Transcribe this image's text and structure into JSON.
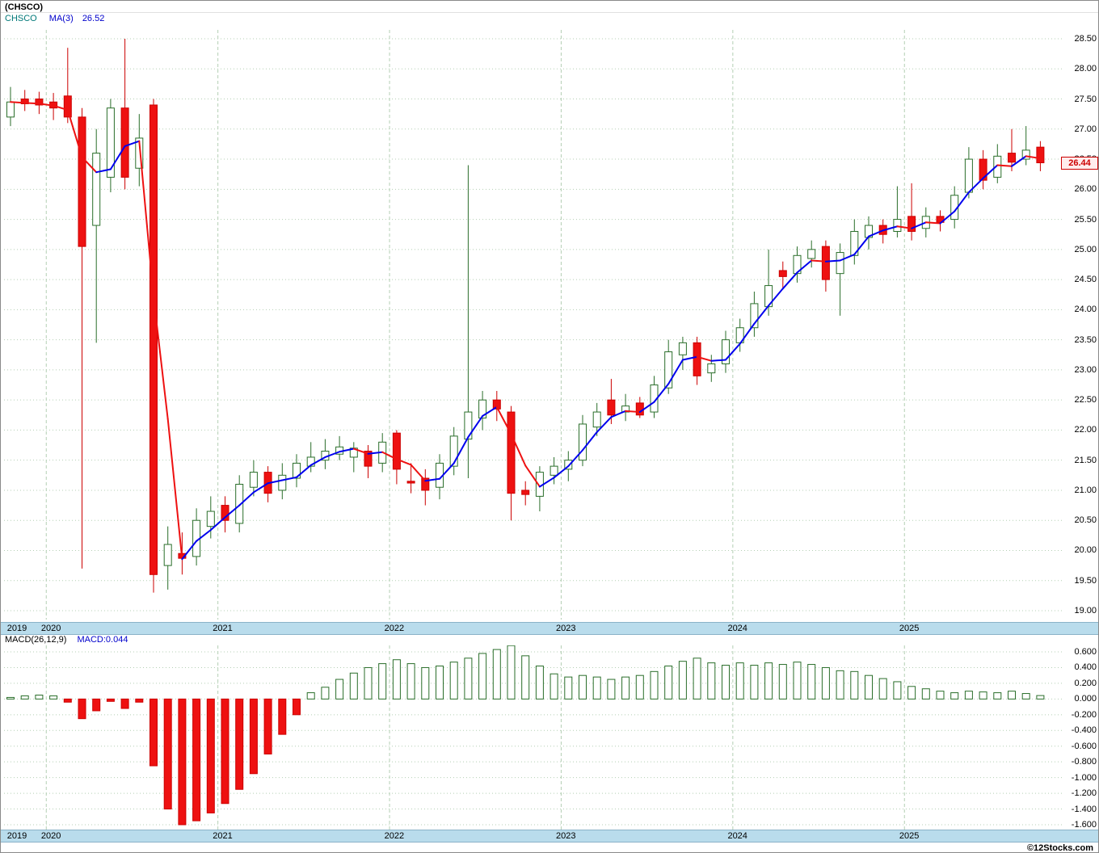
{
  "header": {
    "title": "(CHSCO)"
  },
  "main_chart": {
    "legend": {
      "symbol": "CHSCO",
      "ma_label": "MA(3)",
      "ma_value": "26.52"
    },
    "last_price_label": "26.44"
  },
  "macd": {
    "legend": {
      "name": "MACD(26,12,9)",
      "value": "MACD:0.044"
    }
  },
  "footer": {
    "copyright": "©12Stocks.com"
  },
  "colors": {
    "up_border": "#2a6e2a",
    "up_fill": "#ffffff",
    "down_fill": "#ee1111",
    "down_border": "#cc0000",
    "ma_up": "#0000ee",
    "ma_down": "#ee1111",
    "grid": "#b4cfb4",
    "band_bg": "#b9dcec",
    "band_border": "#8ab2c8",
    "symbol_color": "#007878",
    "legend_blue": "#0000cc",
    "tag_color": "#cc0000",
    "tag_bg": "#ffecec"
  },
  "chart_data": [
    {
      "type": "candlestick",
      "title": "(CHSCO)",
      "symbol": "CHSCO",
      "interval": "monthly",
      "x_start": "2019-10",
      "overlay": {
        "name": "MA(3)",
        "period": 3,
        "last_value": 26.52
      },
      "last_close": 26.44,
      "ylim": [
        18.85,
        28.75
      ],
      "y_ticks": [
        28.5,
        28.0,
        27.5,
        27.0,
        26.5,
        26.0,
        25.5,
        25.0,
        24.5,
        24.0,
        23.5,
        23.0,
        22.5,
        22.0,
        21.5,
        21.0,
        20.5,
        20.0,
        19.5,
        19.0
      ],
      "x_year_marks": [
        {
          "label": "2019",
          "index": 0,
          "gridline": false
        },
        {
          "label": "2020",
          "index": 3,
          "gridline": true
        },
        {
          "label": "2021",
          "index": 15,
          "gridline": true
        },
        {
          "label": "2022",
          "index": 27,
          "gridline": true
        },
        {
          "label": "2023",
          "index": 39,
          "gridline": true
        },
        {
          "label": "2024",
          "index": 51,
          "gridline": true
        },
        {
          "label": "2025",
          "index": 63,
          "gridline": true
        }
      ],
      "candles": [
        [
          27.2,
          27.7,
          27.05,
          27.45
        ],
        [
          27.5,
          27.65,
          27.3,
          27.42
        ],
        [
          27.5,
          27.62,
          27.25,
          27.4
        ],
        [
          27.45,
          27.6,
          27.15,
          27.35
        ],
        [
          27.55,
          28.35,
          27.1,
          27.2
        ],
        [
          27.2,
          27.35,
          19.7,
          25.05
        ],
        [
          25.4,
          27.0,
          23.45,
          26.6
        ],
        [
          26.2,
          27.5,
          25.95,
          27.35
        ],
        [
          27.35,
          28.5,
          26.0,
          26.2
        ],
        [
          26.35,
          27.25,
          26.05,
          26.85
        ],
        [
          27.4,
          27.5,
          19.3,
          19.6
        ],
        [
          19.75,
          20.4,
          19.35,
          20.1
        ],
        [
          19.95,
          20.3,
          19.6,
          19.87
        ],
        [
          19.9,
          20.7,
          19.75,
          20.5
        ],
        [
          20.4,
          20.9,
          20.2,
          20.65
        ],
        [
          20.75,
          20.9,
          20.3,
          20.5
        ],
        [
          20.45,
          21.25,
          20.3,
          21.1
        ],
        [
          21.05,
          21.5,
          20.9,
          21.3
        ],
        [
          21.3,
          21.4,
          20.8,
          20.95
        ],
        [
          21.0,
          21.45,
          20.85,
          21.25
        ],
        [
          21.2,
          21.6,
          21.05,
          21.45
        ],
        [
          21.4,
          21.8,
          21.3,
          21.55
        ],
        [
          21.5,
          21.85,
          21.35,
          21.65
        ],
        [
          21.6,
          21.9,
          21.5,
          21.72
        ],
        [
          21.55,
          21.8,
          21.3,
          21.7
        ],
        [
          21.65,
          21.75,
          21.2,
          21.4
        ],
        [
          21.45,
          21.95,
          21.3,
          21.8
        ],
        [
          21.95,
          22.0,
          21.1,
          21.35
        ],
        [
          21.15,
          21.45,
          20.95,
          21.12
        ],
        [
          21.2,
          21.35,
          20.75,
          21.0
        ],
        [
          21.05,
          21.6,
          20.85,
          21.45
        ],
        [
          21.4,
          22.05,
          21.25,
          21.9
        ],
        [
          21.85,
          26.4,
          21.2,
          22.3
        ],
        [
          22.2,
          22.65,
          22.0,
          22.5
        ],
        [
          22.5,
          22.65,
          22.15,
          22.35
        ],
        [
          22.3,
          22.4,
          20.5,
          20.95
        ],
        [
          21.0,
          21.15,
          20.75,
          20.93
        ],
        [
          20.9,
          21.4,
          20.65,
          21.3
        ],
        [
          21.25,
          21.55,
          21.1,
          21.4
        ],
        [
          21.35,
          21.65,
          21.15,
          21.5
        ],
        [
          21.5,
          22.25,
          21.4,
          22.1
        ],
        [
          22.05,
          22.45,
          21.9,
          22.3
        ],
        [
          22.5,
          22.85,
          22.1,
          22.25
        ],
        [
          22.3,
          22.6,
          22.15,
          22.4
        ],
        [
          22.45,
          22.55,
          22.2,
          22.25
        ],
        [
          22.3,
          22.9,
          22.2,
          22.75
        ],
        [
          22.7,
          23.5,
          22.6,
          23.3
        ],
        [
          23.25,
          23.55,
          23.0,
          23.45
        ],
        [
          23.45,
          23.55,
          22.75,
          22.9
        ],
        [
          22.95,
          23.25,
          22.8,
          23.1
        ],
        [
          23.1,
          23.65,
          22.95,
          23.5
        ],
        [
          23.45,
          23.85,
          23.3,
          23.7
        ],
        [
          23.7,
          24.3,
          23.55,
          24.1
        ],
        [
          24.05,
          25.0,
          23.9,
          24.4
        ],
        [
          24.65,
          24.8,
          24.35,
          24.55
        ],
        [
          24.6,
          25.05,
          24.45,
          24.9
        ],
        [
          24.85,
          25.15,
          24.7,
          25.0
        ],
        [
          25.05,
          25.15,
          24.3,
          24.5
        ],
        [
          24.6,
          25.1,
          23.9,
          24.95
        ],
        [
          24.9,
          25.5,
          24.75,
          25.3
        ],
        [
          25.2,
          25.55,
          25.0,
          25.4
        ],
        [
          25.4,
          25.5,
          25.1,
          25.25
        ],
        [
          25.3,
          26.05,
          25.2,
          25.5
        ],
        [
          25.55,
          26.1,
          25.15,
          25.3
        ],
        [
          25.35,
          25.7,
          25.2,
          25.55
        ],
        [
          25.55,
          25.65,
          25.3,
          25.45
        ],
        [
          25.5,
          26.05,
          25.35,
          25.9
        ],
        [
          25.95,
          26.7,
          25.85,
          26.5
        ],
        [
          26.5,
          26.65,
          26.0,
          26.15
        ],
        [
          26.2,
          26.75,
          26.1,
          26.55
        ],
        [
          26.6,
          27.0,
          26.3,
          26.45
        ],
        [
          26.5,
          27.05,
          26.4,
          26.65
        ],
        [
          26.7,
          26.8,
          26.3,
          26.44
        ]
      ]
    },
    {
      "type": "bar",
      "title": "MACD(26,12,9)",
      "name": "MACD histogram",
      "last_value": 0.044,
      "ylim": [
        -1.7,
        0.7
      ],
      "y_ticks": [
        0.6,
        0.4,
        0.2,
        0.0,
        -0.2,
        -0.4,
        -0.6,
        -0.8,
        -1.0,
        -1.2,
        -1.4,
        -1.6
      ],
      "values": [
        0.02,
        0.04,
        0.05,
        0.04,
        -0.04,
        -0.25,
        -0.15,
        -0.03,
        -0.12,
        -0.04,
        -0.85,
        -1.4,
        -1.6,
        -1.55,
        -1.45,
        -1.33,
        -1.15,
        -0.95,
        -0.7,
        -0.45,
        -0.2,
        0.08,
        0.15,
        0.25,
        0.33,
        0.4,
        0.45,
        0.5,
        0.45,
        0.4,
        0.42,
        0.47,
        0.52,
        0.58,
        0.63,
        0.68,
        0.55,
        0.42,
        0.32,
        0.28,
        0.3,
        0.28,
        0.25,
        0.28,
        0.3,
        0.35,
        0.42,
        0.48,
        0.52,
        0.46,
        0.43,
        0.46,
        0.43,
        0.46,
        0.44,
        0.47,
        0.44,
        0.4,
        0.36,
        0.35,
        0.3,
        0.26,
        0.22,
        0.16,
        0.13,
        0.1,
        0.08,
        0.1,
        0.09,
        0.08,
        0.1,
        0.07,
        0.044
      ]
    }
  ]
}
